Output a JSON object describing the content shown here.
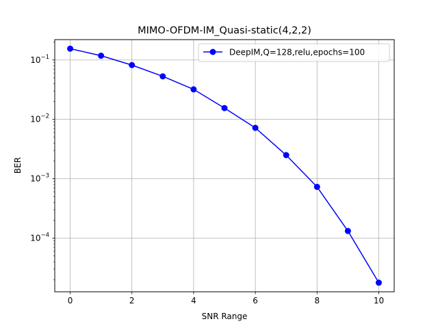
{
  "chart_data": {
    "type": "line",
    "title": "MIMO-OFDM-IM_Quasi-static(4,2,2)",
    "xlabel": "SNR Range",
    "ylabel": "BER",
    "xlim": [
      -0.5,
      10.5
    ],
    "ylim": [
      1.25e-05,
      0.22
    ],
    "yscale": "log",
    "grid": true,
    "legend_position": "top-right",
    "x_ticks": [
      0,
      2,
      4,
      6,
      8,
      10
    ],
    "y_ticks": [
      {
        "value": 0.0001,
        "base": "10",
        "exp": "−4"
      },
      {
        "value": 0.001,
        "base": "10",
        "exp": "−3"
      },
      {
        "value": 0.01,
        "base": "10",
        "exp": "−2"
      },
      {
        "value": 0.1,
        "base": "10",
        "exp": "−1"
      }
    ],
    "series": [
      {
        "name": "DeepIM,Q=128,relu,epochs=100",
        "color": "#0000ff",
        "marker": "circle",
        "x": [
          0,
          1,
          2,
          3,
          4,
          5,
          6,
          7,
          8,
          9,
          10
        ],
        "y": [
          0.155,
          0.118,
          0.082,
          0.053,
          0.032,
          0.0155,
          0.0072,
          0.0025,
          0.00073,
          0.000132,
          1.78e-05
        ]
      }
    ]
  }
}
